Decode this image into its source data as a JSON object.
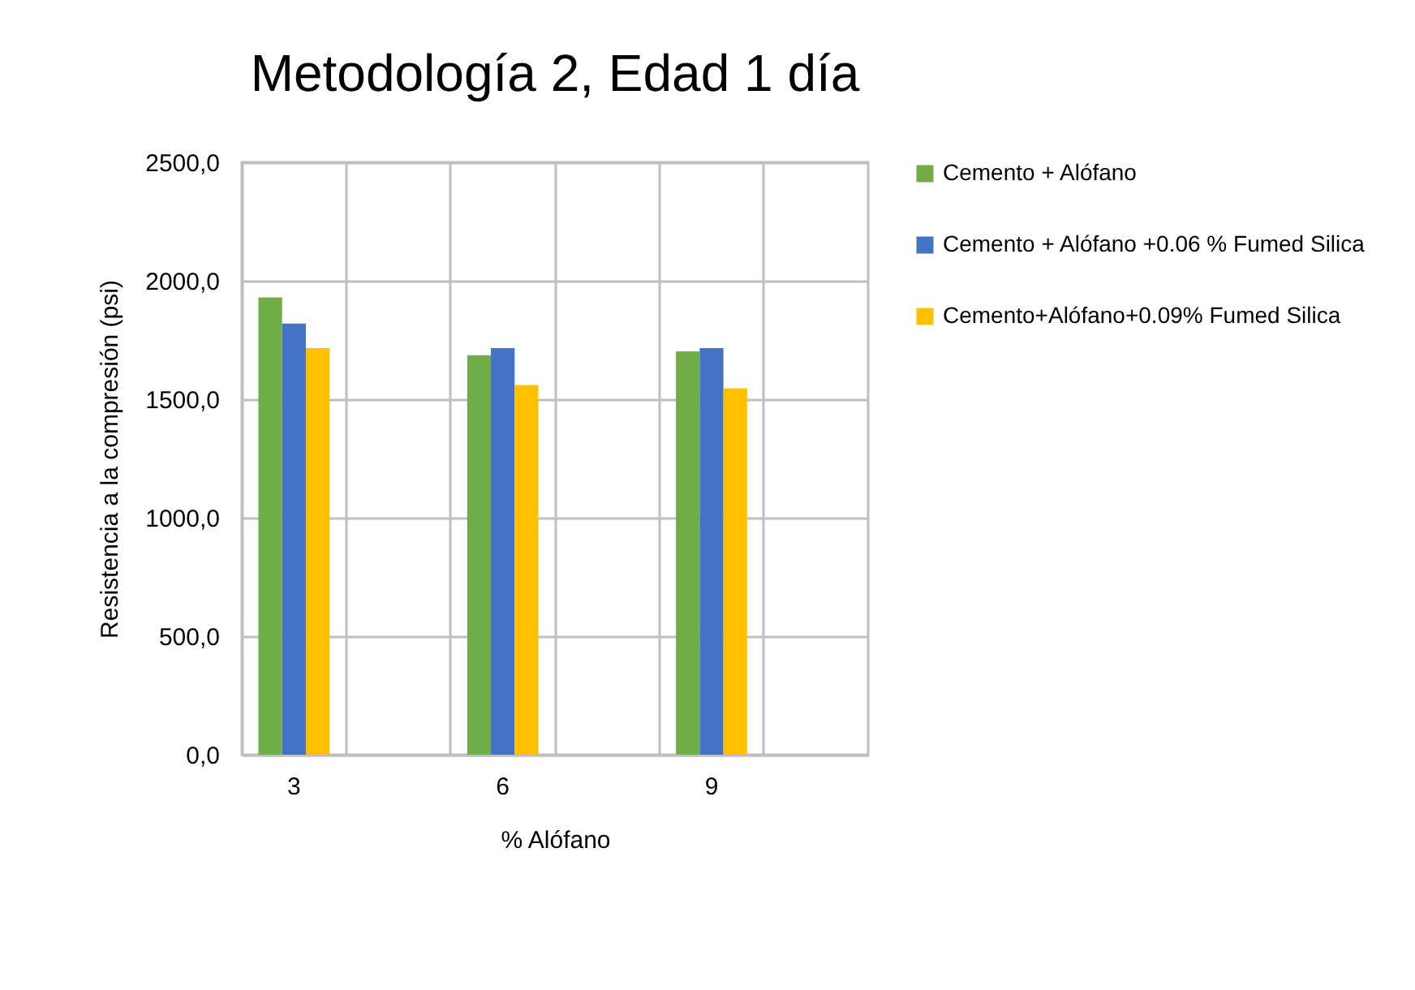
{
  "chart_data": {
    "type": "bar",
    "title": "Metodología 2, Edad 1 día",
    "xlabel": "% Alófano",
    "ylabel": "Resistencia a la compresión (psi)",
    "categories": [
      "3",
      null,
      "6",
      null,
      "9",
      null
    ],
    "series": [
      {
        "name": "Cemento + Alófano",
        "color": "#70ad47",
        "values": [
          1930,
          null,
          1686,
          null,
          1702,
          null
        ]
      },
      {
        "name": "Cemento + Alófano +0.06 % Fumed Silica",
        "color": "#4472c4",
        "values": [
          1819,
          null,
          1716,
          null,
          1716,
          null
        ]
      },
      {
        "name": "Cemento+Alófano+0.09% Fumed Silica",
        "color": "#ffc000",
        "values": [
          1716,
          null,
          1560,
          null,
          1546,
          null
        ]
      }
    ],
    "ylim": [
      0,
      2500
    ],
    "yticks": [
      {
        "value": 0,
        "label": "0,0"
      },
      {
        "value": 500,
        "label": "500,0"
      },
      {
        "value": 1000,
        "label": "1000,0"
      },
      {
        "value": 1500,
        "label": "1500,0"
      },
      {
        "value": 2000,
        "label": "2000,0"
      },
      {
        "value": 2500,
        "label": "2500,0"
      }
    ],
    "grid": true,
    "legend": "right"
  }
}
